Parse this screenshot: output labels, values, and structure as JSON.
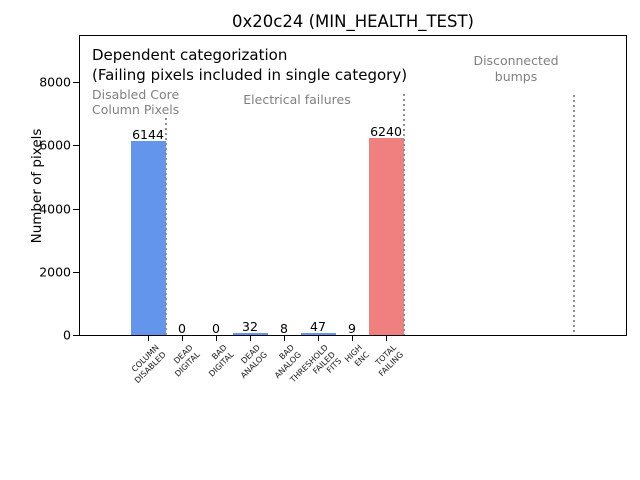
{
  "chart_data": {
    "type": "bar",
    "title": "0x20c24 (MIN_HEALTH_TEST)",
    "ylabel": "Number of pixels",
    "xlabel": "",
    "categories": [
      "COLUMN\nDISABLED",
      "DEAD\nDIGITAL",
      "BAD\nDIGITAL",
      "DEAD\nANALOG",
      "BAD\nANALOG",
      "THRESHOLD\nFAILED\nFITS",
      "HIGH\nENC",
      "TOTAL\nFAILING"
    ],
    "values": [
      6144,
      0,
      0,
      32,
      8,
      47,
      9,
      6240
    ],
    "value_labels": [
      "6144",
      "0",
      "0",
      "32",
      "8",
      "47",
      "9",
      "6240"
    ],
    "bar_colors": [
      "#6495ED",
      "#6495ED",
      "#6495ED",
      "#6495ED",
      "#6495ED",
      "#6495ED",
      "#6495ED",
      "#F08080"
    ],
    "yticks": [
      0,
      2000,
      4000,
      6000,
      8000
    ],
    "ytick_labels": [
      "0",
      "2000",
      "4000",
      "6000",
      "8000"
    ],
    "ylim": [
      0,
      9500
    ],
    "xlim": [
      -2.1,
      14.1
    ],
    "grid": false,
    "legend": null,
    "annotations": {
      "dependent_line1": "Dependent categorization",
      "dependent_line2": "(Failing pixels included in single category)",
      "group_disabled": "Disabled Core\nColumn Pixels",
      "group_electrical": "Electrical failures",
      "group_disconnected": "Disconnected\nbumps"
    },
    "separators_x": [
      0.5,
      7.5,
      12.5
    ],
    "colors": {
      "bar_blue": "#6495ED",
      "bar_red": "#F08080",
      "gray_text": "#808080",
      "separator_gray": "#909090",
      "axis_black": "#000000"
    }
  }
}
